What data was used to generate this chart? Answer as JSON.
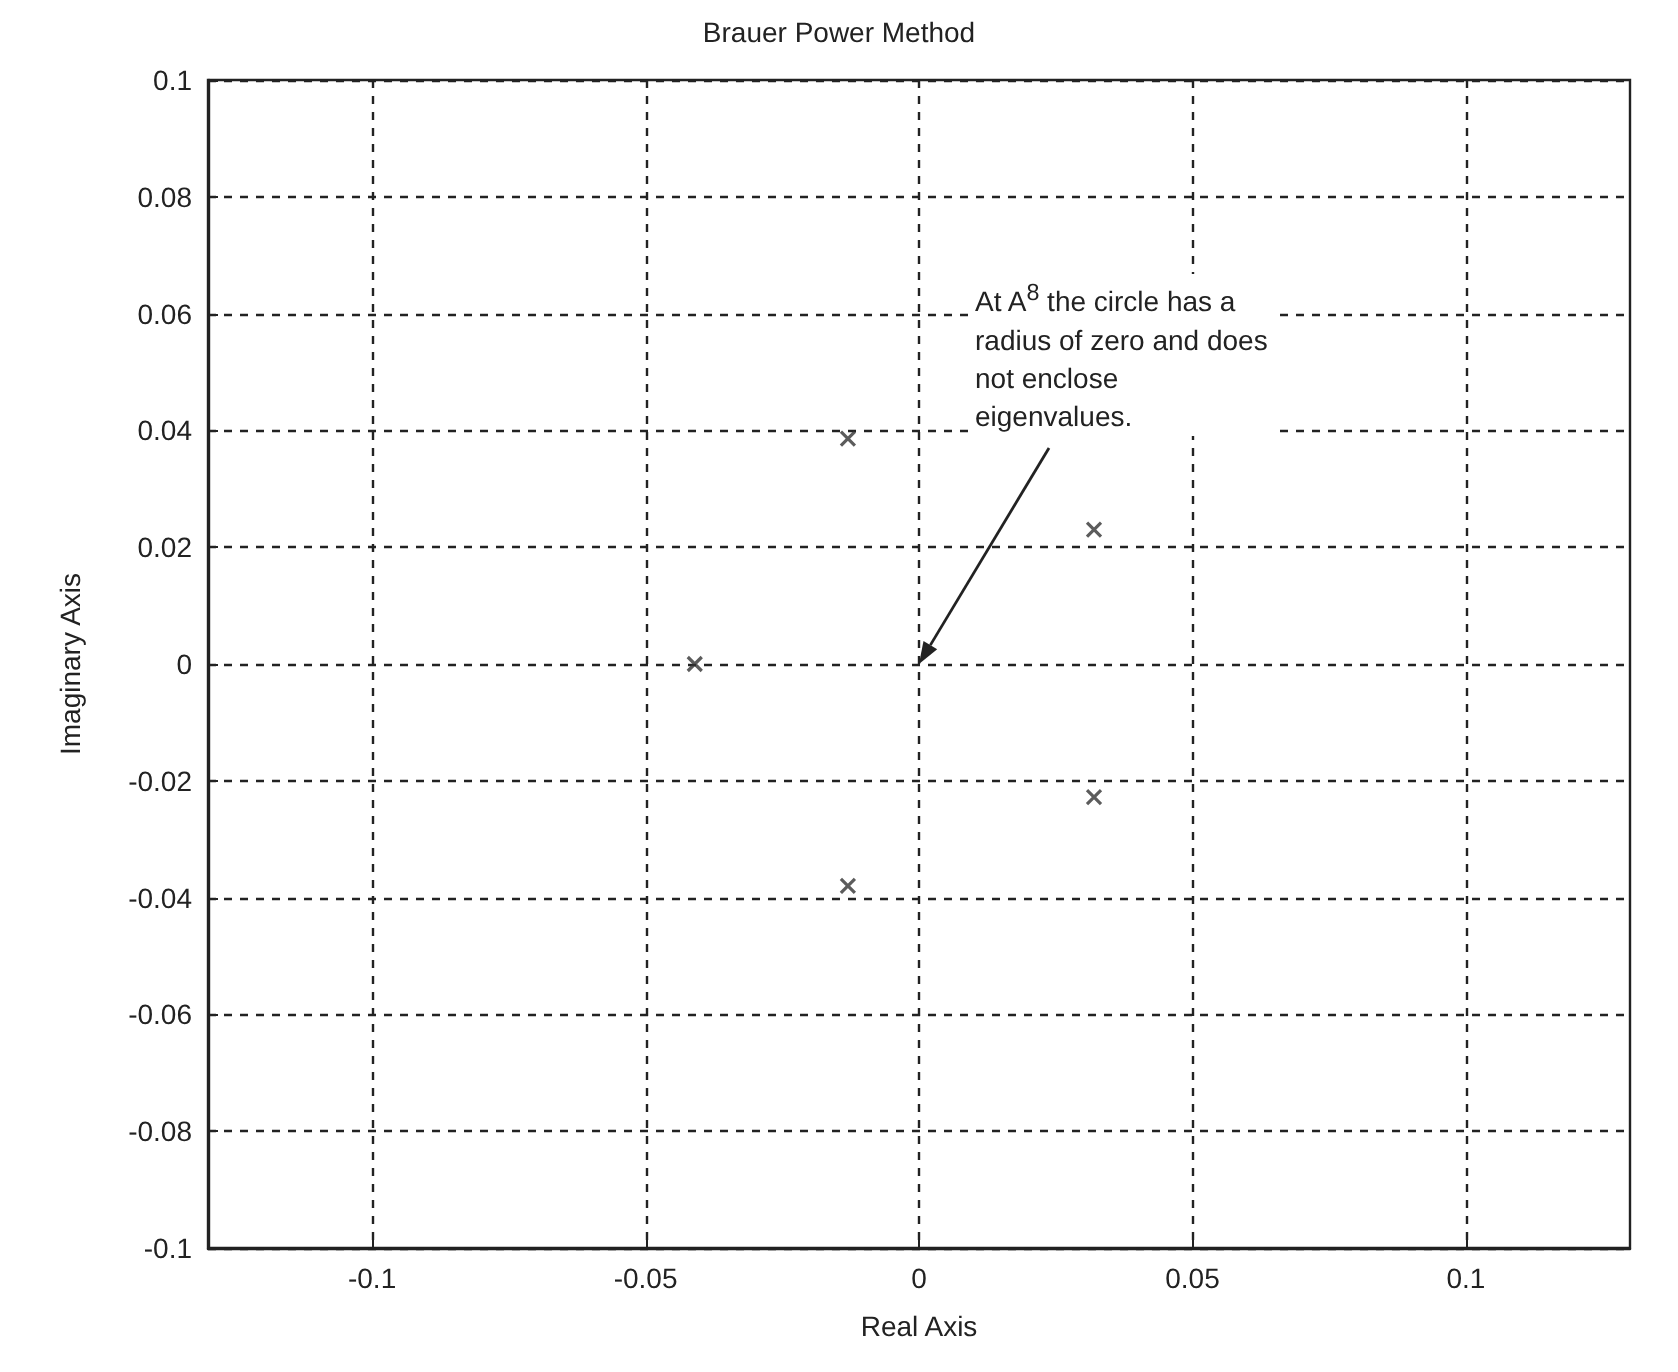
{
  "chart_data": {
    "type": "scatter",
    "title": "Brauer Power Method",
    "xlabel": "Real Axis",
    "ylabel": "Imaginary Axis",
    "x": [
      -0.041,
      -0.013,
      -0.013,
      0.032,
      0.032
    ],
    "series": [
      {
        "color": "#333333",
        "values": [
          0,
          0.0386,
          -0.038,
          0.023,
          -0.0228
        ]
      }
    ],
    "marker": "cross",
    "xlim": [
      -0.13,
      0.13
    ],
    "xticks": [
      -0.1,
      -0.05,
      0,
      0.05,
      0.1
    ],
    "ylim": [
      -0.1,
      0.1
    ],
    "yticks": [
      -0.1,
      -0.08,
      -0.06,
      -0.04,
      -0.02,
      0,
      0.02,
      0.04,
      0.06,
      0.08,
      0.1
    ],
    "grid": true,
    "annotations": [
      "At A$^{8}$  the circle has a radius of zero and does not enclose eigenvalues."
    ]
  }
}
